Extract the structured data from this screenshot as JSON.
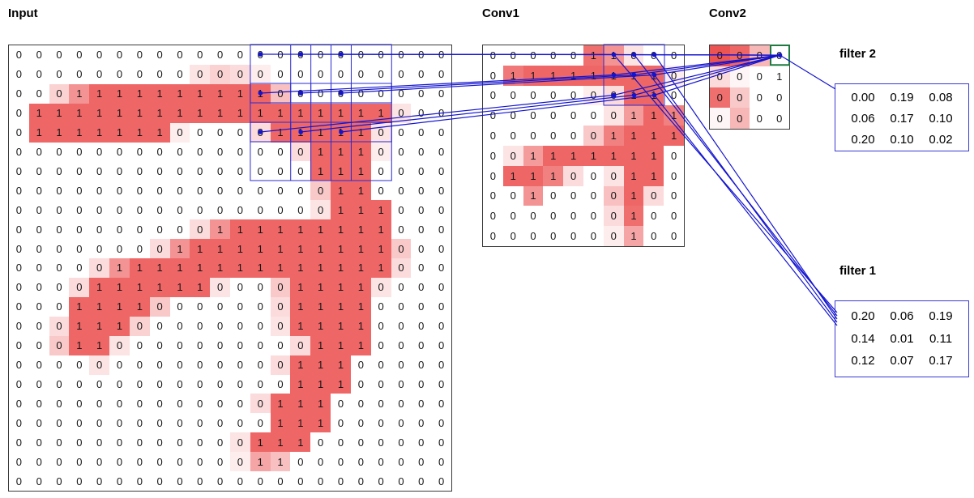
{
  "panels": {
    "input": {
      "title": "Input"
    },
    "conv1": {
      "title": "Conv1"
    },
    "conv2": {
      "title": "Conv2"
    },
    "filter1": {
      "title": "filter 1"
    },
    "filter2": {
      "title": "filter 2"
    }
  },
  "colors": {
    "heat_rgb": "235,75,75",
    "line_blue": "#1414cf",
    "box_blue": "#2a2ad0",
    "green_box": "#1e7a3e",
    "grid_border": "#3a3a3a"
  },
  "input_grid": {
    "cols": 22,
    "rows": 23,
    "labels": [
      "0000000000000000000000",
      "0000000000000000000000",
      "0001111111111000000000",
      "0111111111111111111000",
      "0111111100000111110000",
      "0000000000000001110000",
      "0000000000000001110000",
      "0000000000000000110000",
      "0000000000000000111000",
      "0000000000111111111000",
      "0000000011111111111000",
      "0000011111111111111000",
      "0000111111000011110000",
      "0001111000000011110000",
      "0001110000000011110000",
      "0001100000000001110000",
      "0000000000000011100000",
      "0000000000000011100000",
      "0000000000000111000000",
      "0000000000000111000000",
      "0000000000001110000000",
      "0000000000001100000000",
      "0000000000000000000000"
    ],
    "alpha_overrides": {
      "1": {
        "9": 0.15,
        "10": 0.25,
        "11": 0.2,
        "12": 0.1
      },
      "2": {
        "2": 0.25,
        "3": 0.6,
        "13": 0.35
      },
      "3": {
        "19": 0.15
      },
      "4": {
        "8": 0.1,
        "12": 0.2,
        "18": 0.15
      },
      "5": {
        "14": 0.2,
        "18": 0.1
      },
      "7": {
        "15": 0.3
      },
      "8": {
        "15": 0.15
      },
      "9": {
        "9": 0.2,
        "10": 0.6
      },
      "10": {
        "7": 0.2,
        "8": 0.6,
        "19": 0.3
      },
      "11": {
        "4": 0.2,
        "5": 0.6,
        "19": 0.2
      },
      "12": {
        "3": 0.2,
        "10": 0.15,
        "13": 0.3,
        "18": 0.15
      },
      "13": {
        "7": 0.3,
        "13": 0.2
      },
      "14": {
        "2": 0.2,
        "6": 0.25,
        "13": 0.15
      },
      "15": {
        "2": 0.3,
        "5": 0.15,
        "14": 0.2
      },
      "16": {
        "4": 0.15,
        "13": 0.2
      },
      "18": {
        "12": 0.2
      },
      "20": {
        "11": 0.15
      },
      "21": {
        "11": 0.1,
        "12": 0.5,
        "13": 0.35
      }
    }
  },
  "conv1_grid": {
    "cols": 10,
    "rows": 10,
    "labels": [
      "0000011000",
      "0111111110",
      "0000000110",
      "0000000111",
      "0000001111",
      "0011111110",
      "0111000110",
      "0010000100",
      "0000000100",
      "0000000100"
    ],
    "alpha_overrides": {
      "0": {
        "5": 0.8,
        "6": 0.6,
        "7": 0.15
      },
      "1": {
        "1": 0.75,
        "9": 0.1
      },
      "2": {
        "5": 0.1,
        "6": 0.2
      },
      "3": {
        "6": 0.15,
        "7": 0.55,
        "9": 0.7
      },
      "4": {
        "5": 0.3,
        "6": 0.7
      },
      "5": {
        "1": 0.15,
        "2": 0.55
      },
      "6": {
        "3": 0.7,
        "4": 0.2,
        "6": 0.15
      },
      "7": {
        "2": 0.6,
        "6": 0.35,
        "8": 0.2
      },
      "8": {
        "6": 0.2,
        "7": 0.8
      },
      "9": {
        "6": 0.1,
        "7": 0.5
      }
    }
  },
  "conv2_grid": {
    "cols": 4,
    "rows": 4,
    "labels": [
      "0000",
      "0001",
      "0000",
      "0000"
    ],
    "alpha_overrides": {
      "0": {
        "0": 0.95,
        "1": 0.85,
        "2": 0.4
      },
      "1": {
        "0": 0.2,
        "1": 0.05,
        "3": 0
      },
      "2": {
        "0": 0.8,
        "1": 0.3
      },
      "3": {
        "0": 0.05,
        "1": 0.4
      }
    }
  },
  "filter1": {
    "values": [
      [
        "0.20",
        "0.06",
        "0.19"
      ],
      [
        "0.14",
        "0.01",
        "0.11"
      ],
      [
        "0.12",
        "0.07",
        "0.17"
      ]
    ]
  },
  "filter2": {
    "values": [
      [
        "0.00",
        "0.19",
        "0.08"
      ],
      [
        "0.06",
        "0.17",
        "0.10"
      ],
      [
        "0.20",
        "0.10",
        "0.02"
      ]
    ]
  },
  "overlay": {
    "input_rf_cols": [
      12,
      14,
      16
    ],
    "input_rf_rows": [
      0,
      2,
      4
    ],
    "rf_size": 3,
    "conv1_box": {
      "col": 6,
      "row": 0,
      "size": 3
    },
    "conv2_cell": {
      "col": 3,
      "row": 0
    },
    "filter1_lines_from": [
      [
        6,
        0
      ],
      [
        7,
        0
      ],
      [
        8,
        0
      ],
      [
        8,
        1
      ],
      [
        8,
        2
      ]
    ]
  }
}
